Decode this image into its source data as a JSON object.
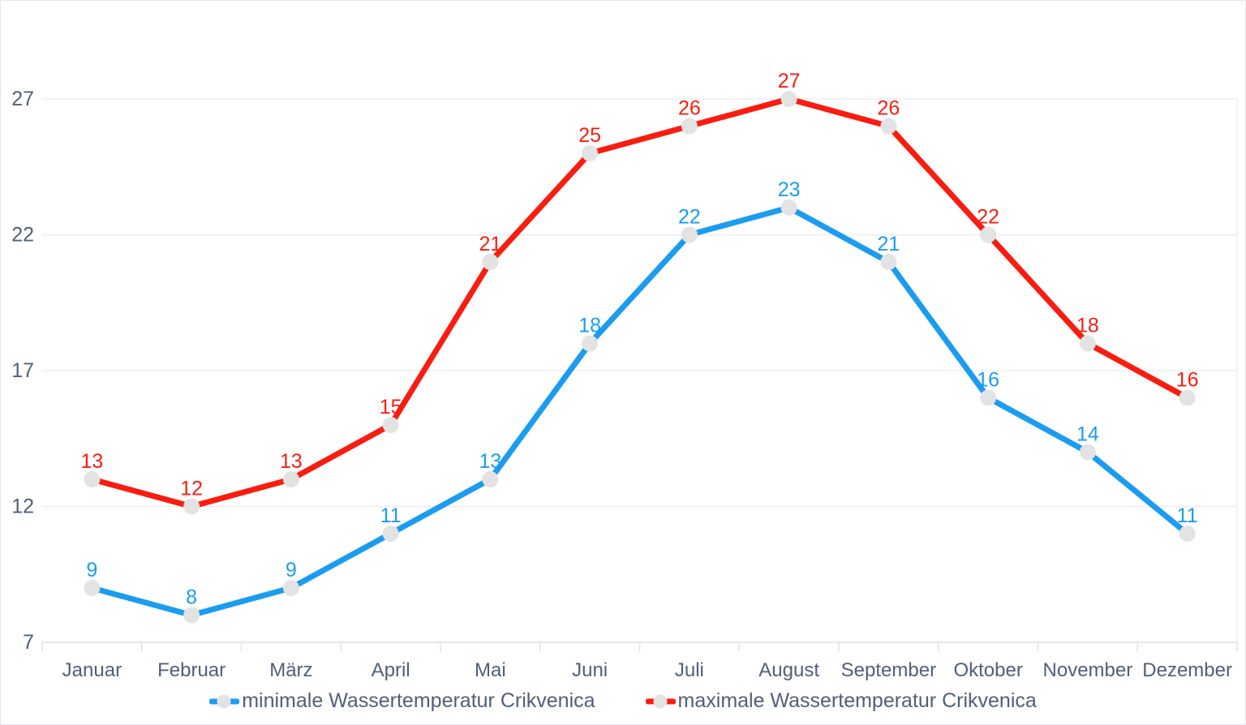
{
  "chart_data": {
    "type": "line",
    "title": "",
    "xlabel": "",
    "ylabel": "",
    "categories": [
      "Januar",
      "Februar",
      "März",
      "April",
      "Mai",
      "Juni",
      "Juli",
      "August",
      "September",
      "Oktober",
      "November",
      "Dezember"
    ],
    "series": [
      {
        "name": "minimale Wassertemperatur Crikvenica",
        "color": "#1b9cf0",
        "values": [
          9,
          8,
          9,
          11,
          13,
          18,
          22,
          23,
          21,
          16,
          14,
          11
        ]
      },
      {
        "name": "maximale Wassertemperatur Crikvenica",
        "color": "#f91d10",
        "values": [
          13,
          12,
          13,
          15,
          21,
          25,
          26,
          27,
          26,
          22,
          18,
          16
        ]
      }
    ],
    "yticks": [
      7,
      12,
      17,
      22,
      27
    ],
    "ylim": [
      7,
      27
    ],
    "grid": true,
    "data_labels": true,
    "legend_position": "bottom",
    "marker_color": "#e3e3e3",
    "gridline_color": "#ebedf1",
    "axis_line_color": "#dde1e9",
    "axis_text_color": "#515f77"
  }
}
